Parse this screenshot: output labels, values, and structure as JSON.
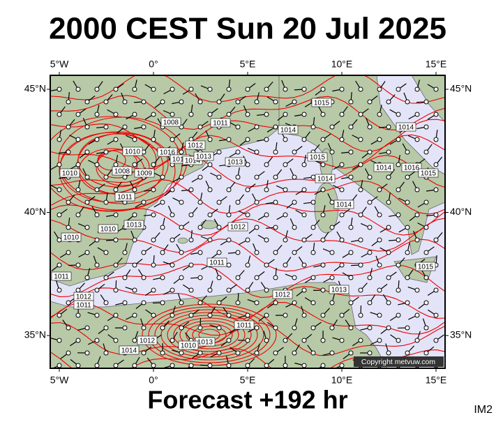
{
  "header": {
    "title": "2000 CEST Sun 20 Jul 2025"
  },
  "map": {
    "lon_ticks": [
      {
        "value": -5,
        "label": "5°W"
      },
      {
        "value": 0,
        "label": "0°"
      },
      {
        "value": 5,
        "label": "5°E"
      },
      {
        "value": 10,
        "label": "10°E"
      },
      {
        "value": 15,
        "label": "15°E"
      }
    ],
    "lat_ticks": [
      {
        "value": 45,
        "label": "45°N"
      },
      {
        "value": 40,
        "label": "40°N"
      },
      {
        "value": 35,
        "label": "35°N"
      }
    ],
    "isobar_labels": [
      "1015",
      "1014",
      "1011",
      "1008",
      "1012",
      "1010",
      "1016",
      "1015",
      "1014",
      "1013",
      "1013",
      "1015",
      "1014",
      "1010",
      "1008",
      "1009",
      "1011",
      "1014",
      "1012",
      "1013",
      "1010",
      "1010",
      "1011",
      "1015",
      "1011",
      "1013",
      "1012",
      "1012",
      "1011",
      "1012",
      "1013",
      "1011",
      "1014",
      "1014",
      "1014",
      "1016",
      "1015",
      "1010"
    ],
    "copyright": "Copyright metvuw.com"
  },
  "footer": {
    "subtitle": "Forecast +192 hr",
    "image_id": "IM2"
  }
}
